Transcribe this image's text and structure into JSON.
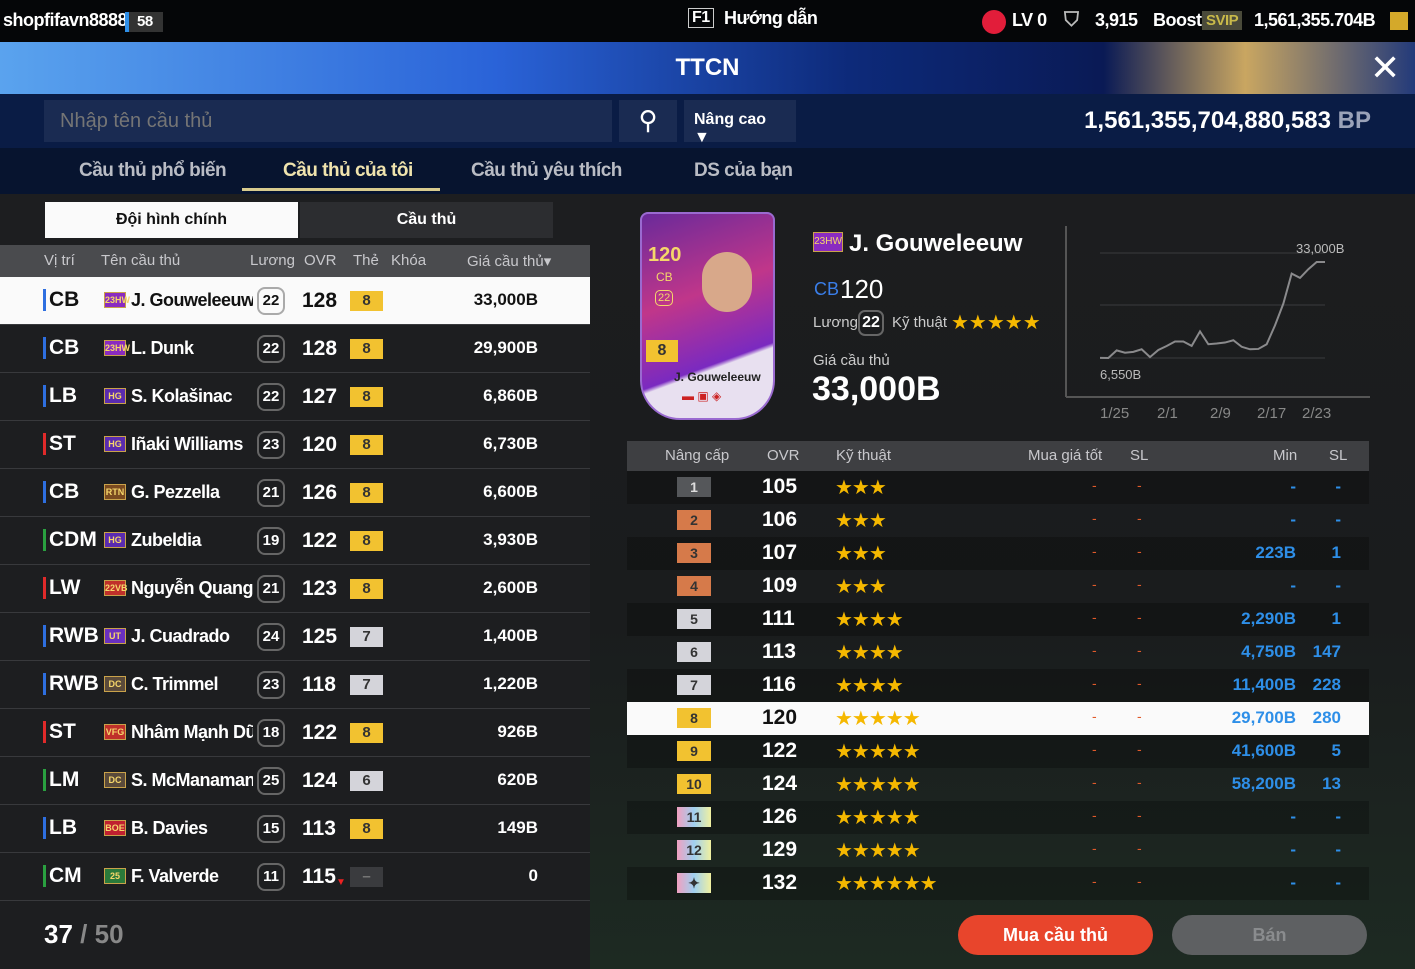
{
  "topbar": {
    "username": "shopfifavn8888",
    "level_badge": "58",
    "help_key": "F1",
    "help_label": "Hướng dẫn",
    "lv": "LV 0",
    "trophy_count": "3,915",
    "boost": "Boost",
    "svip": "SVIP",
    "balance": "1,561,355.704B"
  },
  "banner": {
    "title": "TTCN"
  },
  "search": {
    "placeholder": "Nhập tên cầu thủ",
    "advanced": "Nâng cao",
    "bp_value": "1,561,355,704,880,583",
    "bp_unit": "BP"
  },
  "tabs": [
    {
      "label": "Cầu thủ phổ biến"
    },
    {
      "label": "Cầu thủ của tôi",
      "active": true
    },
    {
      "label": "Cầu thủ yêu thích"
    },
    {
      "label": "DS của bạn"
    }
  ],
  "subtabs": [
    {
      "label": "Đội hình chính",
      "active": true
    },
    {
      "label": "Cầu thủ"
    }
  ],
  "list": {
    "headers": {
      "pos": "Vị trí",
      "name": "Tên cầu thủ",
      "salary": "Lương",
      "ovr": "OVR",
      "card": "Thẻ",
      "lock": "Khóa",
      "price": "Giá cầu thủ▾"
    },
    "rows": [
      {
        "pos": "CB",
        "pc": "#2e6fe0",
        "season": "23HW",
        "sc": "#8a2bc0",
        "name": "J. Gouweleeuw",
        "salary": "22",
        "ovr": "128",
        "level": "8",
        "price": "33,000B"
      },
      {
        "pos": "CB",
        "pc": "#2e6fe0",
        "season": "23HW",
        "sc": "#8a2bc0",
        "name": "L. Dunk",
        "salary": "22",
        "ovr": "128",
        "level": "8",
        "price": "29,900B"
      },
      {
        "pos": "LB",
        "pc": "#2e6fe0",
        "season": "HG",
        "sc": "#5a2bb0",
        "name": "S. Kolašinac",
        "salary": "22",
        "ovr": "127",
        "level": "8",
        "price": "6,860B"
      },
      {
        "pos": "ST",
        "pc": "#e02a2a",
        "season": "HG",
        "sc": "#5a2bb0",
        "name": "Iñaki Williams",
        "salary": "23",
        "ovr": "120",
        "level": "8",
        "price": "6,730B"
      },
      {
        "pos": "CB",
        "pc": "#2e6fe0",
        "season": "RTN",
        "sc": "#7a4a20",
        "name": "G. Pezzella",
        "salary": "21",
        "ovr": "126",
        "level": "8",
        "price": "6,600B"
      },
      {
        "pos": "CDM",
        "pc": "#2aa040",
        "season": "HG",
        "sc": "#5a2bb0",
        "name": "Zubeldia",
        "salary": "19",
        "ovr": "122",
        "level": "8",
        "price": "3,930B"
      },
      {
        "pos": "LW",
        "pc": "#e02a2a",
        "season": "22VB",
        "sc": "#c0302a",
        "name": "Nguyễn Quang Hải",
        "salary": "21",
        "ovr": "123",
        "level": "8",
        "price": "2,600B"
      },
      {
        "pos": "RWB",
        "pc": "#2e6fe0",
        "season": "UT",
        "sc": "#6a30c0",
        "name": "J. Cuadrado",
        "salary": "24",
        "ovr": "125",
        "level": "7",
        "price": "1,400B"
      },
      {
        "pos": "RWB",
        "pc": "#2e6fe0",
        "season": "DC",
        "sc": "#5a4a3a",
        "name": "C. Trimmel",
        "salary": "23",
        "ovr": "118",
        "level": "7",
        "price": "1,220B"
      },
      {
        "pos": "ST",
        "pc": "#e02a2a",
        "season": "VFG",
        "sc": "#c0302a",
        "name": "Nhâm Mạnh Dũng",
        "salary": "18",
        "ovr": "122",
        "level": "8",
        "price": "926B"
      },
      {
        "pos": "LM",
        "pc": "#2aa040",
        "season": "DC",
        "sc": "#5a4a3a",
        "name": "S. McManaman",
        "salary": "25",
        "ovr": "124",
        "level": "6",
        "price": "620B"
      },
      {
        "pos": "LB",
        "pc": "#2e6fe0",
        "season": "BOE",
        "sc": "#c02030",
        "name": "B. Davies",
        "salary": "15",
        "ovr": "113",
        "level": "8",
        "price": "149B"
      },
      {
        "pos": "CM",
        "pc": "#2aa040",
        "season": "25",
        "sc": "#2a7a3a",
        "name": "F. Valverde",
        "salary": "11",
        "ovr": "115",
        "level": "–",
        "price": "0",
        "ovr_down": true
      }
    ],
    "count": "37",
    "max": "/ 50"
  },
  "detail": {
    "card_ovr": "120",
    "card_pos": "CB",
    "card_salary": "22",
    "card_level": "8",
    "card_name": "J. Gouweleeuw",
    "season": "23HW",
    "name": "J. Gouweleeuw",
    "pos": "CB",
    "ovr": "120",
    "salary_label": "Lương",
    "salary": "22",
    "skill_label": "Kỹ thuật",
    "skill_stars": 5,
    "price_label": "Giá cầu thủ",
    "price": "33,000B"
  },
  "chart_data": {
    "type": "line",
    "x_ticks": [
      "1/25",
      "2/1",
      "2/9",
      "2/17",
      "2/23"
    ],
    "max_label": "33,000B",
    "min_label": "6,550B",
    "values": [
      6550,
      6500,
      8600,
      7950,
      8200,
      8900,
      6750,
      8700,
      9800,
      11050,
      11050,
      9850,
      13850,
      10300,
      10500,
      10770,
      11400,
      9600,
      8900,
      9000,
      10300,
      15500,
      21500,
      29800,
      28600,
      31000,
      33000,
      33000
    ],
    "grid": true
  },
  "upgrades": {
    "headers": {
      "level": "Nâng cấp",
      "ovr": "OVR",
      "skill": "Kỹ thuật",
      "best": "Mua giá tốt",
      "sl1": "SL",
      "min": "Min",
      "sl2": "SL"
    },
    "rows": [
      {
        "level": "1",
        "ovr": "105",
        "stars": "★★★",
        "best": "-",
        "sl1": "-",
        "min": "-",
        "sl2": "-"
      },
      {
        "level": "2",
        "ovr": "106",
        "stars": "★★★",
        "best": "-",
        "sl1": "-",
        "min": "-",
        "sl2": "-"
      },
      {
        "level": "3",
        "ovr": "107",
        "stars": "★★★",
        "best": "-",
        "sl1": "-",
        "min": "223B",
        "sl2": "1"
      },
      {
        "level": "4",
        "ovr": "109",
        "stars": "★★★",
        "best": "-",
        "sl1": "-",
        "min": "-",
        "sl2": "-"
      },
      {
        "level": "5",
        "ovr": "111",
        "stars": "★★★★",
        "best": "-",
        "sl1": "-",
        "min": "2,290B",
        "sl2": "1"
      },
      {
        "level": "6",
        "ovr": "113",
        "stars": "★★★★",
        "best": "-",
        "sl1": "-",
        "min": "4,750B",
        "sl2": "147"
      },
      {
        "level": "7",
        "ovr": "116",
        "stars": "★★★★",
        "best": "-",
        "sl1": "-",
        "min": "11,400B",
        "sl2": "228"
      },
      {
        "level": "8",
        "ovr": "120",
        "stars": "★★★★★",
        "best": "-",
        "sl1": "-",
        "min": "29,700B",
        "sl2": "280"
      },
      {
        "level": "9",
        "ovr": "122",
        "stars": "★★★★★",
        "best": "-",
        "sl1": "-",
        "min": "41,600B",
        "sl2": "5"
      },
      {
        "level": "10",
        "ovr": "124",
        "stars": "★★★★★",
        "best": "-",
        "sl1": "-",
        "min": "58,200B",
        "sl2": "13"
      },
      {
        "level": "11",
        "ovr": "126",
        "stars": "★★★★★",
        "best": "-",
        "sl1": "-",
        "min": "-",
        "sl2": "-"
      },
      {
        "level": "12",
        "ovr": "129",
        "stars": "★★★★★",
        "best": "-",
        "sl1": "-",
        "min": "-",
        "sl2": "-"
      },
      {
        "level": "✦",
        "ovr": "132",
        "stars": "★★★★★★",
        "best": "-",
        "sl1": "-",
        "min": "-",
        "sl2": "-"
      }
    ]
  },
  "actions": {
    "buy": "Mua cầu thủ",
    "sell": "Bán"
  },
  "colors": {
    "accent_gold": "#efe3ad",
    "buy": "#e8452c",
    "price_blue": "#2e8fe8"
  }
}
